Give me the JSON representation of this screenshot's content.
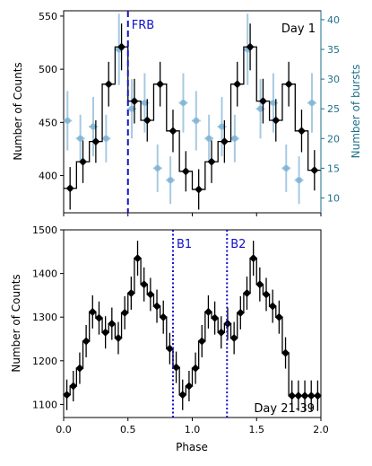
{
  "chart_data": [
    {
      "type": "line",
      "panel": "top",
      "annotation": "Day 1",
      "xlabel": "",
      "ylabel": "Number of Counts",
      "ylabel_right": "Number of bursts",
      "xlim": [
        0,
        2.0
      ],
      "ylim": [
        365,
        555
      ],
      "ylim_right": [
        7.5,
        41.5
      ],
      "xticks": [
        0.0,
        0.5,
        1.0,
        1.5,
        2.0
      ],
      "yticks": [
        400,
        450,
        500,
        550
      ],
      "yticks_right": [
        10,
        15,
        20,
        25,
        30,
        35,
        40
      ],
      "counts": {
        "x": [
          0.05,
          0.15,
          0.25,
          0.35,
          0.45,
          0.55,
          0.65,
          0.75,
          0.85,
          0.95,
          1.05,
          1.15,
          1.25,
          1.35,
          1.45,
          1.55,
          1.65,
          1.75,
          1.85,
          1.95
        ],
        "y": [
          388,
          413,
          432,
          486,
          521,
          470,
          452,
          486,
          442,
          404,
          387,
          413,
          432,
          486,
          521,
          470,
          452,
          486,
          442,
          405
        ],
        "yerr": [
          20,
          20,
          20,
          21,
          22,
          21,
          20,
          21,
          20,
          19,
          19,
          20,
          20,
          21,
          22,
          21,
          20,
          21,
          20,
          19
        ],
        "color": "#000000"
      },
      "bursts": {
        "x": [
          0.03,
          0.13,
          0.23,
          0.33,
          0.43,
          0.53,
          0.63,
          0.73,
          0.83,
          0.93,
          1.03,
          1.13,
          1.23,
          1.33,
          1.43,
          1.53,
          1.63,
          1.73,
          1.83,
          1.93
        ],
        "y": [
          23,
          20,
          22,
          20,
          35,
          25,
          26,
          15,
          13,
          26,
          23,
          20,
          22,
          20,
          35,
          25,
          26,
          15,
          13,
          26
        ],
        "yerr": [
          5,
          4,
          5,
          4,
          6,
          5,
          5,
          4,
          4,
          5,
          5,
          4,
          5,
          4,
          6,
          5,
          5,
          4,
          4,
          5
        ],
        "color": "#7fb3d5"
      },
      "vlines": [
        {
          "x": 0.5,
          "label": "FRB",
          "style": "dashed",
          "color": "#1010cc"
        }
      ]
    },
    {
      "type": "line",
      "panel": "bottom",
      "annotation": "Day 21-39",
      "xlabel": "Phase",
      "ylabel": "Number of Counts",
      "xlim": [
        0,
        2.0
      ],
      "ylim": [
        1070,
        1500
      ],
      "xticks": [
        0.0,
        0.5,
        1.0,
        1.5,
        2.0
      ],
      "xticklabels": [
        "0.0",
        "0.5",
        "1.0",
        "1.5",
        "2.0"
      ],
      "yticks": [
        1100,
        1200,
        1300,
        1400,
        1500
      ],
      "counts": {
        "x": [
          0.025,
          0.075,
          0.125,
          0.175,
          0.225,
          0.275,
          0.325,
          0.375,
          0.425,
          0.475,
          0.525,
          0.575,
          0.625,
          0.675,
          0.725,
          0.775,
          0.825,
          0.875,
          0.925,
          0.975,
          1.025,
          1.075,
          1.125,
          1.175,
          1.225,
          1.275,
          1.325,
          1.375,
          1.425,
          1.475,
          1.525,
          1.575,
          1.625,
          1.675,
          1.725,
          1.775,
          1.825,
          1.875,
          1.925,
          1.975
        ],
        "y": [
          1122,
          1142,
          1183,
          1245,
          1312,
          1298,
          1265,
          1285,
          1252,
          1310,
          1355,
          1435,
          1375,
          1352,
          1325,
          1300,
          1228,
          1185,
          1122,
          1142,
          1183,
          1245,
          1312,
          1298,
          1265,
          1285,
          1252,
          1310,
          1355,
          1435,
          1375,
          1352,
          1325,
          1300,
          1218,
          1120,
          1120,
          1120,
          1120,
          1120
        ],
        "yerr": [
          35,
          35,
          36,
          37,
          38,
          38,
          37,
          37,
          37,
          38,
          38,
          40,
          39,
          38,
          38,
          38,
          36,
          36,
          35,
          35,
          36,
          37,
          38,
          38,
          37,
          37,
          37,
          38,
          38,
          40,
          39,
          38,
          38,
          38,
          36,
          35,
          35,
          35,
          35,
          35
        ],
        "color": "#000000"
      },
      "vlines": [
        {
          "x": 0.85,
          "label": "B1",
          "style": "dotted",
          "color": "#1010cc"
        },
        {
          "x": 1.27,
          "label": "B2",
          "style": "dotted",
          "color": "#1010cc"
        }
      ]
    }
  ]
}
